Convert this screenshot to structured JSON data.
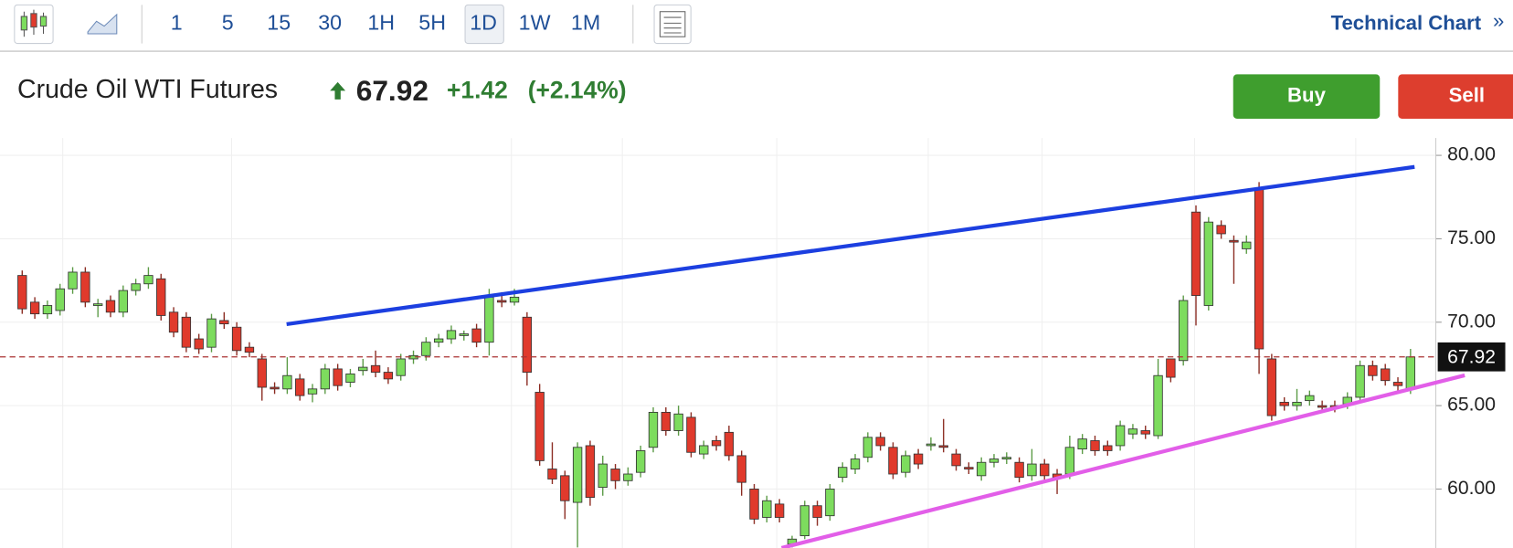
{
  "toolbar": {
    "intervals": [
      "1",
      "5",
      "15",
      "30",
      "1H",
      "5H",
      "1D",
      "1W",
      "1M"
    ],
    "technical_chart": "Technical Chart",
    "chevron": "»"
  },
  "header": {
    "name": "Crude Oil WTI Futures",
    "price": "67.92",
    "change": "+1.42",
    "change_pct": "(+2.14%)"
  },
  "buttons": {
    "buy": "Buy",
    "sell": "Sell"
  },
  "chart_data": {
    "type": "candlestick",
    "open": [
      72.8,
      71.2,
      70.5,
      70.7,
      72.0,
      73.0,
      71.0,
      71.3,
      70.6,
      71.9,
      72.3,
      72.6,
      70.6,
      70.3,
      69.0,
      68.5,
      70.1,
      69.7,
      68.5,
      67.8,
      66.1,
      66.0,
      66.6,
      65.7,
      66.0,
      67.2,
      66.4,
      67.1,
      67.4,
      67.0,
      66.8,
      67.8,
      68.0,
      68.8,
      69.0,
      69.2,
      69.6,
      68.8,
      71.3,
      71.2,
      70.3,
      65.8,
      61.2,
      60.8,
      59.2,
      62.6,
      60.1,
      61.2,
      60.5,
      61.0,
      62.5,
      64.6,
      63.5,
      64.3,
      62.1,
      62.9,
      63.4,
      62.0,
      60.0,
      58.3,
      59.1,
      56.7,
      57.2,
      59.0,
      58.4,
      60.7,
      61.2,
      61.9,
      63.1,
      62.5,
      61.0,
      62.1,
      62.6,
      62.6,
      62.1,
      61.3,
      60.8,
      61.6,
      61.8,
      61.6,
      60.8,
      61.5,
      60.9,
      60.9,
      62.4,
      62.9,
      62.6,
      62.6,
      63.3,
      63.5,
      63.2,
      67.8,
      67.7,
      76.6,
      71.0,
      75.8,
      74.9,
      74.4,
      78.0,
      67.8,
      65.2,
      65.0,
      65.3,
      65.0,
      65.0,
      65.1,
      65.5,
      67.4,
      67.2,
      66.4,
      66.0
    ],
    "high": [
      73.1,
      71.5,
      71.3,
      72.3,
      73.3,
      73.3,
      71.4,
      71.6,
      72.2,
      72.6,
      73.3,
      72.9,
      70.9,
      70.6,
      69.3,
      70.5,
      70.6,
      70.0,
      68.8,
      68.1,
      66.4,
      67.9,
      66.9,
      66.3,
      67.5,
      67.5,
      67.2,
      67.8,
      68.3,
      67.3,
      68.1,
      68.3,
      69.1,
      69.3,
      69.8,
      69.5,
      69.9,
      72.0,
      71.8,
      72.0,
      70.6,
      66.3,
      62.8,
      61.1,
      62.8,
      62.9,
      62.0,
      61.5,
      61.3,
      62.6,
      64.9,
      64.9,
      65.0,
      64.6,
      62.9,
      63.2,
      63.8,
      62.3,
      60.3,
      59.6,
      59.4,
      57.2,
      59.3,
      59.3,
      60.3,
      61.6,
      62.1,
      63.4,
      63.4,
      62.8,
      62.3,
      62.4,
      63.1,
      64.2,
      62.4,
      61.6,
      61.9,
      62.1,
      62.2,
      61.9,
      62.4,
      61.8,
      61.2,
      63.2,
      63.3,
      63.2,
      62.9,
      64.1,
      63.9,
      63.8,
      67.8,
      67.8,
      71.6,
      77.0,
      76.3,
      76.1,
      75.2,
      75.2,
      78.4,
      68.1,
      65.5,
      66.0,
      65.9,
      65.3,
      65.3,
      65.8,
      67.7,
      67.7,
      67.5,
      66.7,
      68.4
    ],
    "low": [
      70.5,
      70.2,
      70.2,
      70.4,
      71.7,
      70.9,
      70.3,
      70.3,
      70.3,
      71.6,
      72.0,
      70.1,
      69.1,
      68.2,
      68.1,
      68.2,
      69.6,
      68.0,
      67.9,
      65.3,
      65.7,
      65.7,
      65.3,
      65.2,
      65.7,
      65.9,
      66.1,
      66.8,
      66.7,
      66.3,
      66.5,
      67.5,
      67.7,
      68.5,
      68.7,
      68.9,
      68.5,
      68.0,
      70.9,
      71.0,
      66.2,
      61.4,
      60.3,
      58.2,
      56.5,
      59.0,
      59.6,
      60.0,
      60.2,
      60.7,
      62.2,
      63.2,
      63.2,
      61.9,
      61.8,
      62.3,
      61.7,
      59.6,
      57.9,
      58.0,
      58.0,
      56.5,
      57.0,
      57.8,
      58.1,
      60.4,
      60.9,
      61.6,
      62.3,
      60.6,
      60.7,
      61.2,
      62.3,
      62.2,
      61.1,
      60.9,
      60.5,
      61.3,
      61.5,
      60.4,
      60.5,
      60.5,
      59.7,
      60.6,
      62.1,
      62.0,
      62.0,
      62.3,
      63.0,
      63.0,
      63.0,
      66.4,
      67.4,
      69.8,
      70.7,
      75.0,
      72.3,
      74.1,
      66.9,
      64.1,
      64.7,
      64.7,
      65.0,
      64.6,
      64.6,
      64.8,
      65.2,
      66.5,
      66.2,
      65.9,
      65.7
    ],
    "close": [
      70.8,
      70.5,
      71.0,
      72.0,
      73.0,
      71.2,
      71.1,
      70.6,
      71.9,
      72.3,
      72.8,
      70.4,
      69.4,
      68.5,
      68.4,
      70.2,
      69.9,
      68.3,
      68.2,
      66.1,
      66.0,
      66.8,
      65.6,
      66.0,
      67.2,
      66.2,
      66.9,
      67.3,
      67.0,
      66.6,
      67.8,
      68.0,
      68.8,
      69.0,
      69.5,
      69.3,
      68.8,
      71.5,
      71.2,
      71.5,
      67.0,
      61.7,
      60.6,
      59.3,
      62.5,
      59.5,
      61.5,
      60.5,
      60.9,
      62.3,
      64.6,
      63.5,
      64.5,
      62.2,
      62.6,
      62.6,
      62.0,
      60.4,
      58.2,
      59.3,
      58.3,
      57.0,
      59.0,
      58.3,
      60.0,
      61.3,
      61.8,
      63.1,
      62.6,
      60.9,
      62.0,
      61.5,
      62.7,
      62.5,
      61.4,
      61.2,
      61.6,
      61.8,
      61.9,
      60.7,
      61.5,
      60.8,
      60.7,
      62.5,
      63.0,
      62.3,
      62.3,
      63.8,
      63.6,
      63.3,
      66.8,
      66.7,
      71.3,
      71.6,
      76.0,
      75.3,
      74.8,
      74.8,
      68.4,
      64.4,
      65.0,
      65.2,
      65.6,
      64.9,
      64.9,
      65.5,
      67.4,
      66.8,
      66.5,
      66.2,
      67.92
    ],
    "up_color": "#7ddc5e",
    "down_color": "#e03a2c",
    "ylim": [
      56.47,
      81.04
    ],
    "yticks": [
      {
        "value": 60,
        "label": "60.00"
      },
      {
        "value": 65,
        "label": "65.00"
      },
      {
        "value": 70,
        "label": "70.00"
      },
      {
        "value": 75,
        "label": "75.00"
      },
      {
        "value": 80,
        "label": "80.00"
      }
    ],
    "current_price": 67.92,
    "grid": true
  }
}
